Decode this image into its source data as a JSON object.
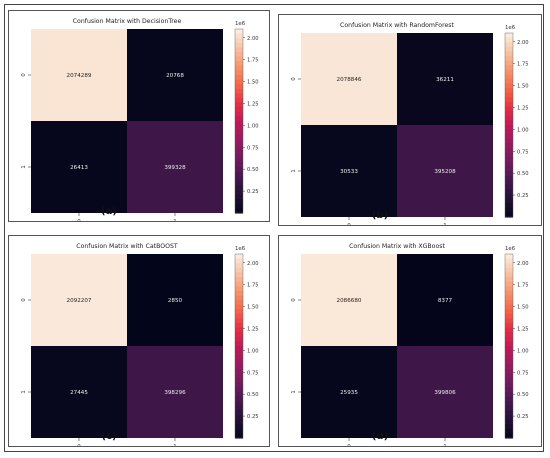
{
  "chart_data": [
    {
      "type": "heatmap",
      "title": "Confusion Matrix with DecisionTree",
      "caption": "(a)",
      "row_labels": [
        "0",
        "1"
      ],
      "col_labels": [
        "0",
        "1"
      ],
      "values": [
        [
          2074289,
          20768
        ],
        [
          26413,
          399328
        ]
      ],
      "colorbar": {
        "ticks": [
          "0.25",
          "0.50",
          "0.75",
          "1.00",
          "1.25",
          "1.50",
          "1.75",
          "2.00"
        ],
        "offset_label": "1e6",
        "range": [
          0,
          2100000
        ]
      }
    },
    {
      "type": "heatmap",
      "title": "Confusion Matrix with RandomForest",
      "caption": "(b)",
      "row_labels": [
        "0",
        "1"
      ],
      "col_labels": [
        "0",
        "1"
      ],
      "values": [
        [
          2078846,
          36211
        ],
        [
          30533,
          395208
        ]
      ],
      "colorbar": {
        "ticks": [
          "0.25",
          "0.50",
          "0.75",
          "1.00",
          "1.25",
          "1.50",
          "1.75",
          "2.00"
        ],
        "offset_label": "1e6",
        "range": [
          0,
          2100000
        ]
      }
    },
    {
      "type": "heatmap",
      "title": "Confusion Matrix with CatBOOST",
      "caption": "(c)",
      "row_labels": [
        "0",
        "1"
      ],
      "col_labels": [
        "0",
        "1"
      ],
      "values": [
        [
          2092207,
          2850
        ],
        [
          27445,
          398296
        ]
      ],
      "colorbar": {
        "ticks": [
          "0.25",
          "0.50",
          "0.75",
          "1.00",
          "1.25",
          "1.50",
          "1.75",
          "2.00"
        ],
        "offset_label": "1e6",
        "range": [
          0,
          2100000
        ]
      }
    },
    {
      "type": "heatmap",
      "title": "Confusion Matrix with XGBoost",
      "caption": "(d)",
      "row_labels": [
        "0",
        "1"
      ],
      "col_labels": [
        "0",
        "1"
      ],
      "values": [
        [
          2086680,
          8377
        ],
        [
          25935,
          399806
        ]
      ],
      "colorbar": {
        "ticks": [
          "0.25",
          "0.50",
          "0.75",
          "1.00",
          "1.25",
          "1.50",
          "1.75",
          "2.00"
        ],
        "offset_label": "1e6",
        "range": [
          0,
          2100000
        ]
      }
    }
  ]
}
